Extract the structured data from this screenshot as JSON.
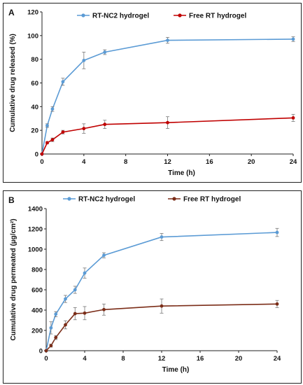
{
  "chart_data": [
    {
      "panel": "A",
      "type": "line",
      "xlabel": "Time (h)",
      "ylabel": "Cumulative drug released (%)",
      "xlim": [
        0,
        24
      ],
      "ylim": [
        0,
        120
      ],
      "xticks": [
        0,
        4,
        8,
        12,
        16,
        20,
        24
      ],
      "yticks": [
        0,
        20,
        40,
        60,
        80,
        100,
        120
      ],
      "legend_position": "top",
      "series": [
        {
          "name": "RT-NC2 hydrogel",
          "color": "#5b9bd5",
          "x": [
            0,
            0.5,
            1,
            2,
            4,
            6,
            12,
            24
          ],
          "y": [
            0,
            24,
            38,
            61,
            79,
            86,
            96,
            97
          ],
          "err": [
            0,
            1.5,
            2,
            3,
            7,
            2,
            2.5,
            2
          ]
        },
        {
          "name": "Free RT hydrogel",
          "color": "#c00000",
          "x": [
            0,
            0.5,
            1,
            2,
            4,
            6,
            12,
            24
          ],
          "y": [
            0,
            9.5,
            12,
            18.5,
            21.5,
            25,
            26.5,
            30.5
          ],
          "err": [
            0,
            1,
            1.5,
            1.5,
            4,
            3.5,
            5,
            3
          ]
        }
      ]
    },
    {
      "panel": "B",
      "type": "line",
      "xlabel": "Time (h)",
      "ylabel": "Cumulative drug permeated  (µg/cm²)",
      "xlim": [
        0,
        24
      ],
      "ylim": [
        0,
        1400
      ],
      "xticks": [
        0,
        4,
        8,
        12,
        16,
        20,
        24
      ],
      "yticks": [
        0,
        200,
        400,
        600,
        800,
        1000,
        1200,
        1400
      ],
      "legend_position": "top",
      "series": [
        {
          "name": "RT-NC2 hydrogel",
          "color": "#5b9bd5",
          "x": [
            0,
            0.5,
            1,
            2,
            3,
            4,
            6,
            12,
            24
          ],
          "y": [
            0,
            225,
            360,
            510,
            600,
            765,
            940,
            1120,
            1165
          ],
          "err": [
            0,
            60,
            25,
            35,
            35,
            50,
            25,
            35,
            40
          ]
        },
        {
          "name": "Free RT hydrogel",
          "color": "#7b2d18",
          "x": [
            0,
            0.5,
            1,
            2,
            3,
            4,
            6,
            12,
            24
          ],
          "y": [
            0,
            50,
            130,
            255,
            365,
            370,
            405,
            440,
            460
          ],
          "err": [
            0,
            15,
            20,
            40,
            60,
            65,
            55,
            70,
            35
          ]
        }
      ]
    }
  ]
}
